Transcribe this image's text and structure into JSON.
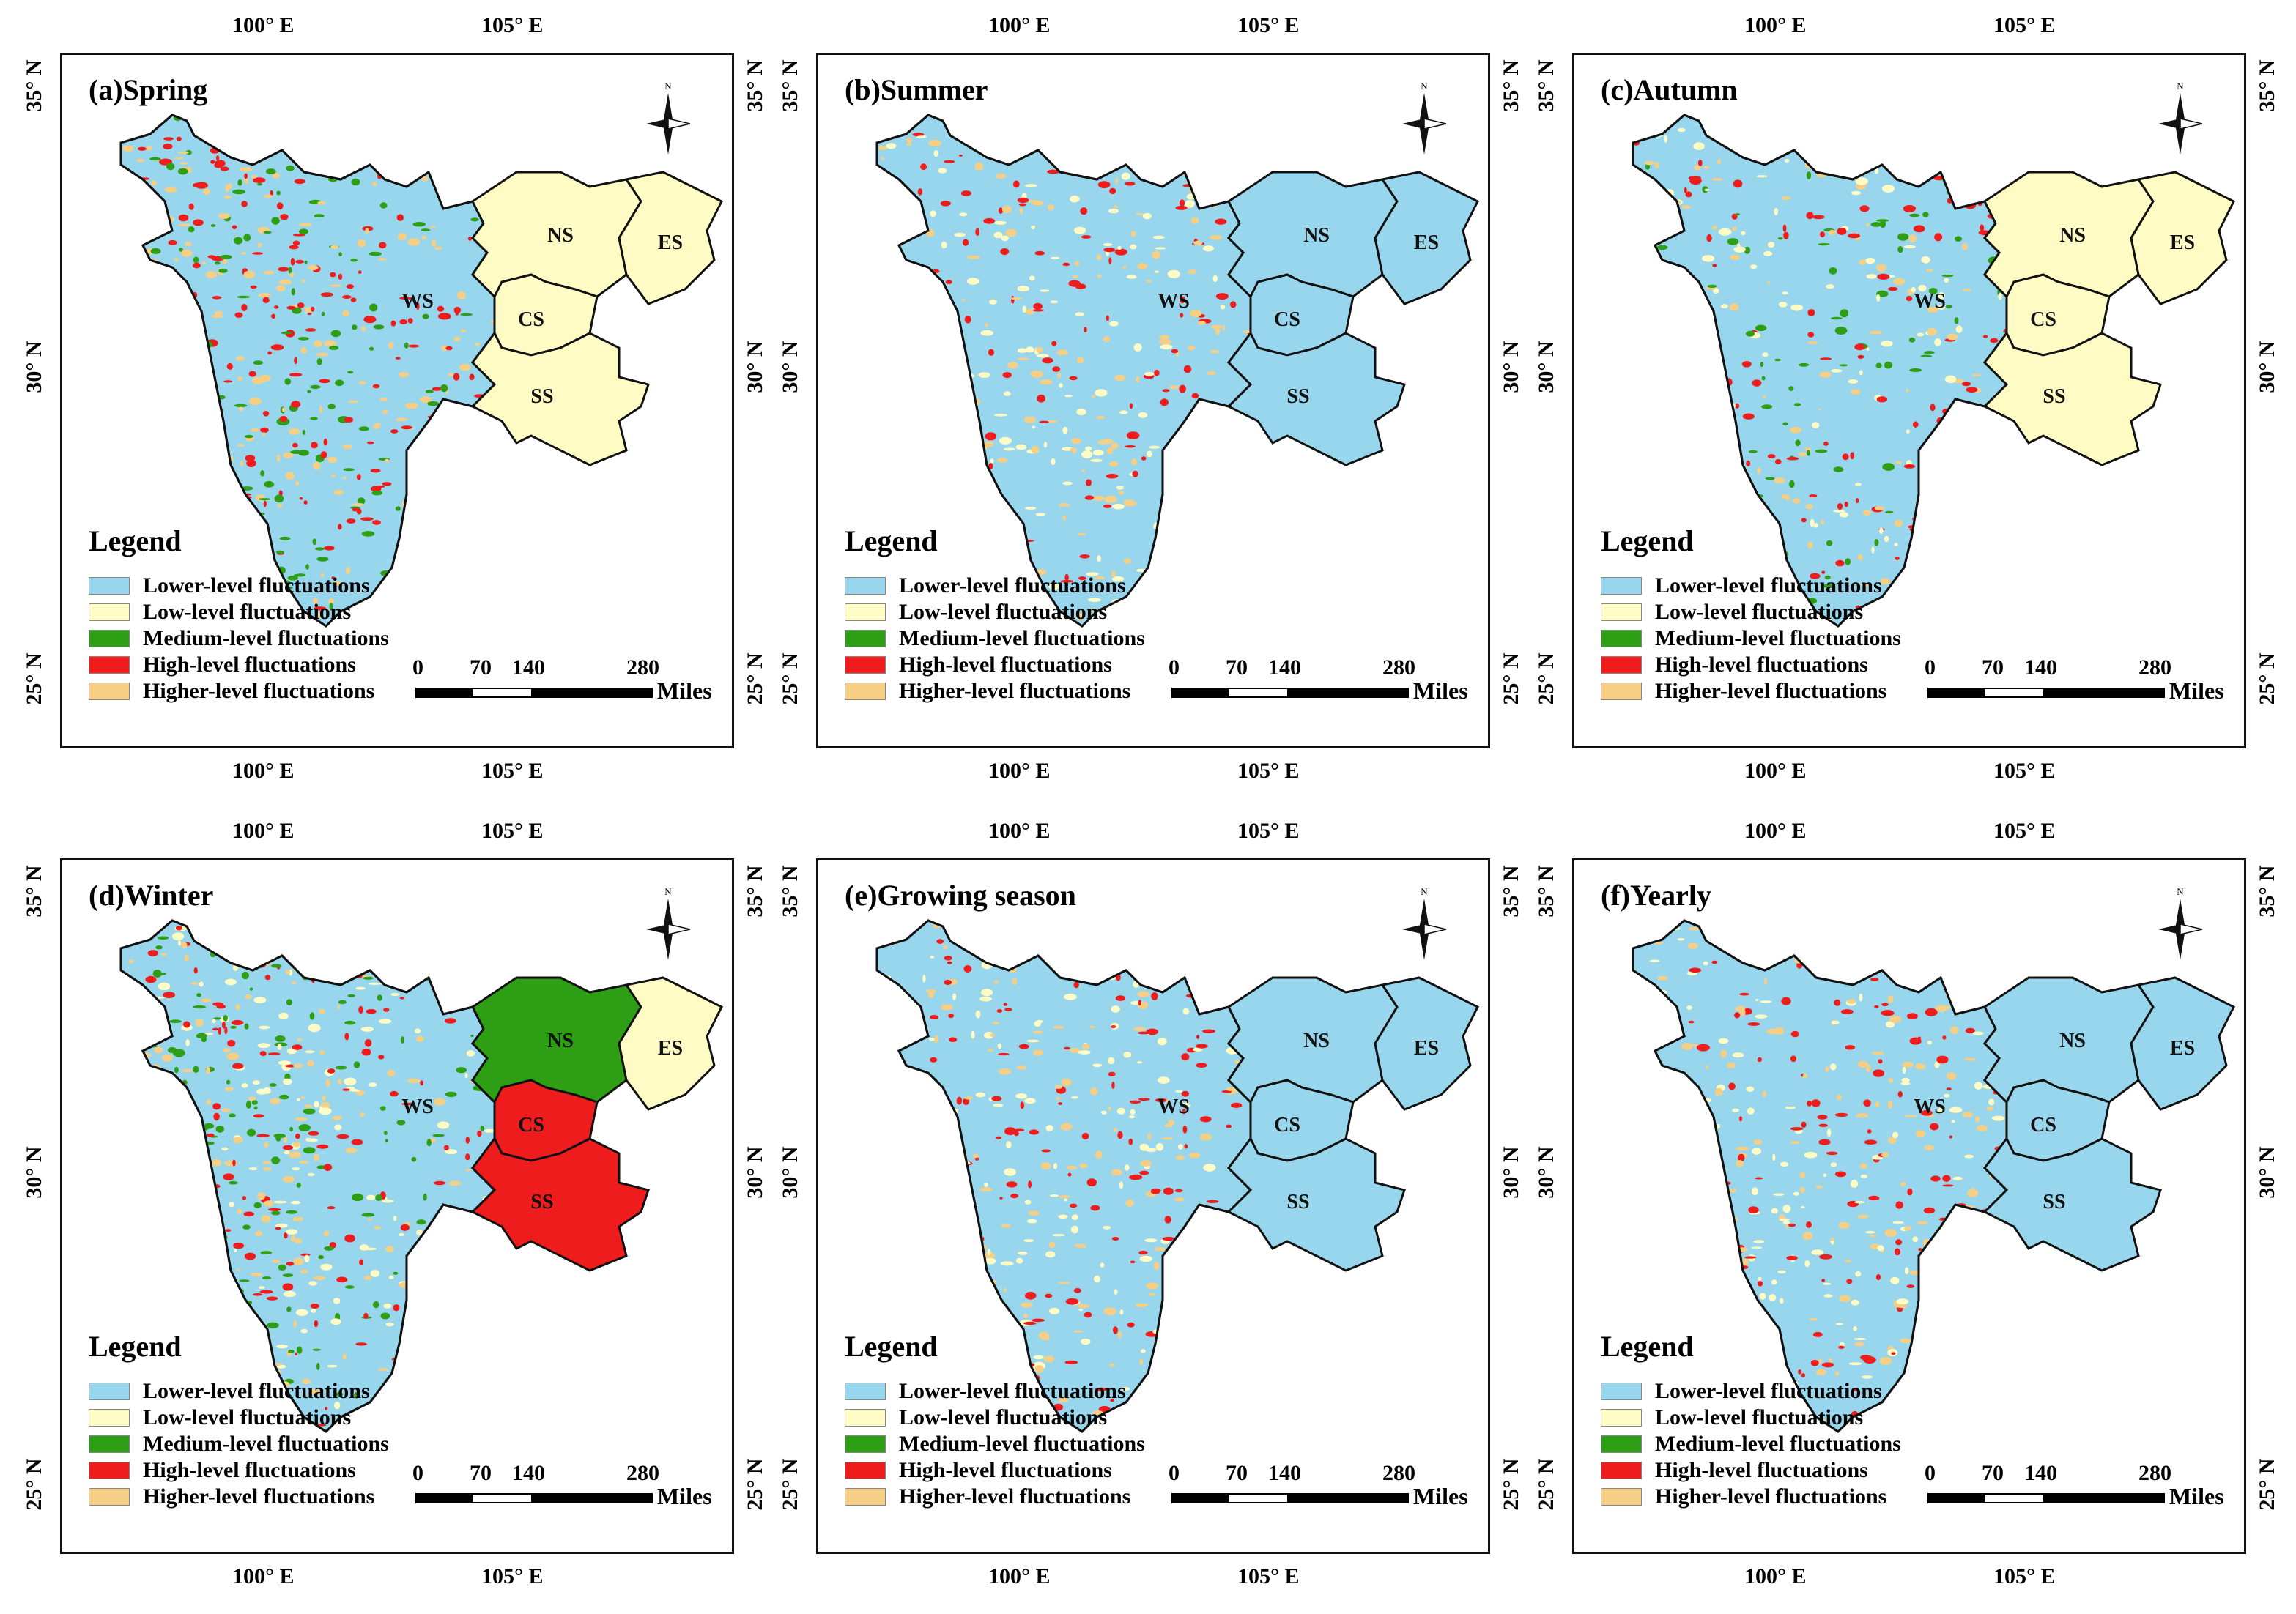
{
  "ticks": {
    "lon": [
      "100° E",
      "105° E"
    ],
    "lat": [
      "35° N",
      "30° N",
      "25° N"
    ]
  },
  "legend": {
    "title": "Legend",
    "items": [
      {
        "label": "Lower-level fluctuations",
        "color": "#97d6ec"
      },
      {
        "label": "Low-level fluctuations",
        "color": "#fffbc4"
      },
      {
        "label": "Medium-level fluctuations",
        "color": "#2e9e14"
      },
      {
        "label": "High-level fluctuations",
        "color": "#ee1c1c"
      },
      {
        "label": "Higher-level fluctuations",
        "color": "#f6cf86"
      }
    ]
  },
  "scale": {
    "labels": [
      "0",
      "70",
      "140",
      "280"
    ],
    "unit": "Miles"
  },
  "north_label": "N",
  "regions": [
    "WS",
    "NS",
    "ES",
    "CS",
    "SS"
  ],
  "panels": [
    {
      "title": "(a)Spring",
      "base": "#97d6ec",
      "east": "#fffbc4",
      "specks": [
        "#f6cf86",
        "#2e9e14",
        "#ee1c1c"
      ]
    },
    {
      "title": "(b)Summer",
      "base": "#97d6ec",
      "east": "#97d6ec",
      "specks": [
        "#fffbc4",
        "#f6cf86",
        "#ee1c1c"
      ]
    },
    {
      "title": "(c)Autumn",
      "base": "#97d6ec",
      "east": "#fffbc4",
      "specks": [
        "#fffbc4",
        "#f6cf86",
        "#2e9e14",
        "#ee1c1c"
      ]
    },
    {
      "title": "(d)Winter",
      "base": "#97d6ec",
      "east": "#ee1c1c",
      "specks": [
        "#f6cf86",
        "#2e9e14",
        "#fffbc4",
        "#ee1c1c"
      ]
    },
    {
      "title": "(e)Growing season",
      "base": "#97d6ec",
      "east": "#97d6ec",
      "specks": [
        "#fffbc4",
        "#f6cf86",
        "#ee1c1c"
      ]
    },
    {
      "title": "(f)Yearly",
      "base": "#97d6ec",
      "east": "#97d6ec",
      "specks": [
        "#fffbc4",
        "#f6cf86",
        "#ee1c1c"
      ]
    }
  ]
}
